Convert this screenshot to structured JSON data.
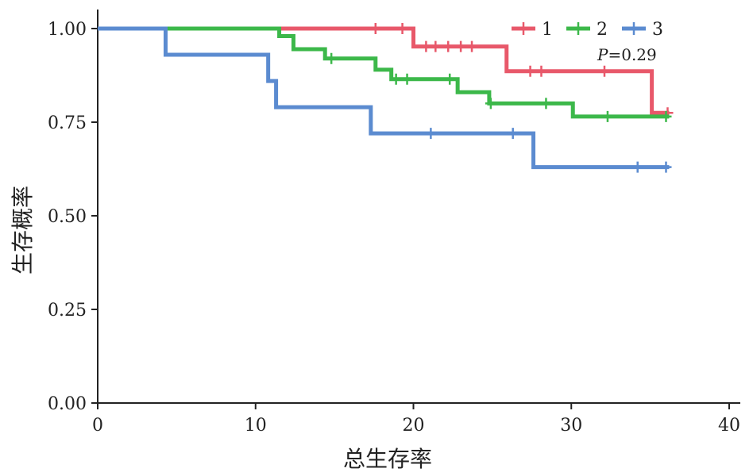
{
  "chart_data": {
    "type": "line",
    "subtype": "kaplan-meier step",
    "xlabel": "总生存率",
    "ylabel": "生存概率",
    "xlim": [
      0,
      40
    ],
    "ylim": [
      0,
      1.05
    ],
    "x_ticks": [
      "0",
      "10",
      "20",
      "30",
      "40"
    ],
    "x_tick_values": [
      0,
      10,
      20,
      30,
      40
    ],
    "y_ticks": [
      "0.00",
      "0.25",
      "0.50",
      "0.75",
      "1.00"
    ],
    "y_tick_values": [
      0,
      0.25,
      0.5,
      0.75,
      1.0
    ],
    "grid": false,
    "legend_position": "top-right",
    "annotation": {
      "italic": "P",
      "text": "=0.29"
    },
    "series": [
      {
        "name": "1",
        "color": "#e8586a",
        "steps": [
          [
            0,
            1.0
          ],
          [
            20.0,
            0.952
          ],
          [
            25.9,
            0.886
          ],
          [
            35.1,
            0.775
          ],
          [
            36.2,
            0.775
          ]
        ],
        "censor": [
          [
            17.6,
            1.0
          ],
          [
            19.3,
            1.0
          ],
          [
            20.8,
            0.952
          ],
          [
            21.4,
            0.952
          ],
          [
            22.2,
            0.952
          ],
          [
            23.0,
            0.952
          ],
          [
            23.7,
            0.952
          ],
          [
            27.4,
            0.886
          ],
          [
            28.1,
            0.886
          ],
          [
            32.1,
            0.886
          ],
          [
            36.1,
            0.775
          ]
        ]
      },
      {
        "name": "2",
        "color": "#3cb84a",
        "steps": [
          [
            0,
            1.0
          ],
          [
            11.5,
            0.98
          ],
          [
            12.4,
            0.945
          ],
          [
            14.4,
            0.92
          ],
          [
            17.6,
            0.89
          ],
          [
            18.6,
            0.865
          ],
          [
            22.8,
            0.83
          ],
          [
            24.8,
            0.8
          ],
          [
            30.1,
            0.765
          ],
          [
            36.2,
            0.765
          ]
        ],
        "censor": [
          [
            14.8,
            0.92
          ],
          [
            18.9,
            0.865
          ],
          [
            19.6,
            0.865
          ],
          [
            22.3,
            0.865
          ],
          [
            24.9,
            0.8
          ],
          [
            28.4,
            0.8
          ],
          [
            32.3,
            0.765
          ],
          [
            36.0,
            0.765
          ]
        ]
      },
      {
        "name": "3",
        "color": "#5b8bd0",
        "steps": [
          [
            0,
            1.0
          ],
          [
            4.3,
            0.93
          ],
          [
            10.8,
            0.86
          ],
          [
            11.3,
            0.79
          ],
          [
            17.3,
            0.72
          ],
          [
            27.6,
            0.63
          ],
          [
            36.2,
            0.63
          ]
        ],
        "censor": [
          [
            21.1,
            0.72
          ],
          [
            26.3,
            0.72
          ],
          [
            34.2,
            0.63
          ],
          [
            36.0,
            0.63
          ]
        ]
      }
    ]
  }
}
